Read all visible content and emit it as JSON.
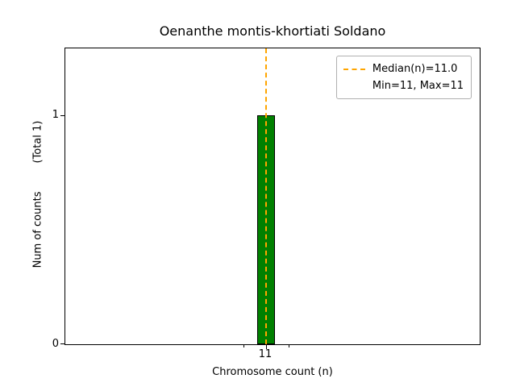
{
  "chart_data": {
    "type": "bar",
    "title": "Oenanthe montis-khortiati Soldano",
    "xlabel": "Chromosome count (n)",
    "ylabel": "Num of counts",
    "ylabel_note": "(Total 1)",
    "categories": [
      "11"
    ],
    "x": [
      11
    ],
    "values": [
      1
    ],
    "yticks": [
      0,
      1
    ],
    "ylim": [
      0,
      1.29
    ],
    "grid": false,
    "median": 11.0,
    "min": 11,
    "max": 11,
    "bar_color": "#008000",
    "bar_edge_color": "#000000",
    "median_line_color": "#FFA500",
    "legend": {
      "position": "upper right",
      "entries": [
        "Median(n)=11.0",
        "Min=11, Max=11"
      ]
    }
  }
}
